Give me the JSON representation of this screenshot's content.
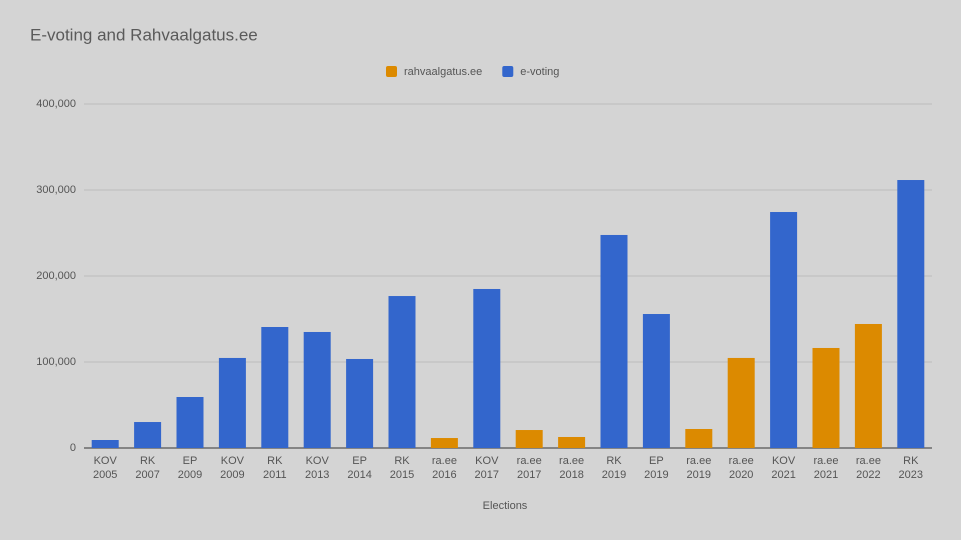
{
  "chart_data": {
    "type": "bar",
    "title": "E-voting and Rahvaalgatus.ee",
    "x_label": "Elections",
    "categories": [
      "KOV 2005",
      "RK 2007",
      "EP 2009",
      "KOV 2009",
      "RK 2011",
      "KOV 2013",
      "EP 2014",
      "RK 2015",
      "ra.ee 2016",
      "KOV 2017",
      "ra.ee 2017",
      "ra.ee 2018",
      "RK 2019",
      "EP 2019",
      "ra.ee 2019",
      "ra.ee 2020",
      "KOV 2021",
      "ra.ee 2021",
      "ra.ee 2022",
      "RK 2023"
    ],
    "series": [
      {
        "name": "rahvaalgatus.ee",
        "color": "#dc8a00",
        "values": [
          null,
          null,
          null,
          null,
          null,
          null,
          null,
          null,
          11600,
          null,
          20900,
          12800,
          null,
          null,
          22100,
          104700,
          null,
          116300,
          144200,
          null
        ]
      },
      {
        "name": "e-voting",
        "color": "#3366cc",
        "values": [
          9300,
          30200,
          59300,
          104700,
          140700,
          134900,
          103500,
          176700,
          null,
          184900,
          null,
          null,
          247700,
          155800,
          null,
          null,
          274400,
          null,
          null,
          311600
        ]
      }
    ],
    "ylim": [
      0,
      400000
    ],
    "yticks": [
      0,
      {
        "value": 100000,
        "label": "100,000"
      },
      {
        "value": 200000,
        "label": "200,000"
      },
      {
        "value": 300000,
        "label": "300,000"
      },
      {
        "value": 400000,
        "label": "400,000"
      }
    ],
    "grid": true,
    "legend": "top"
  }
}
